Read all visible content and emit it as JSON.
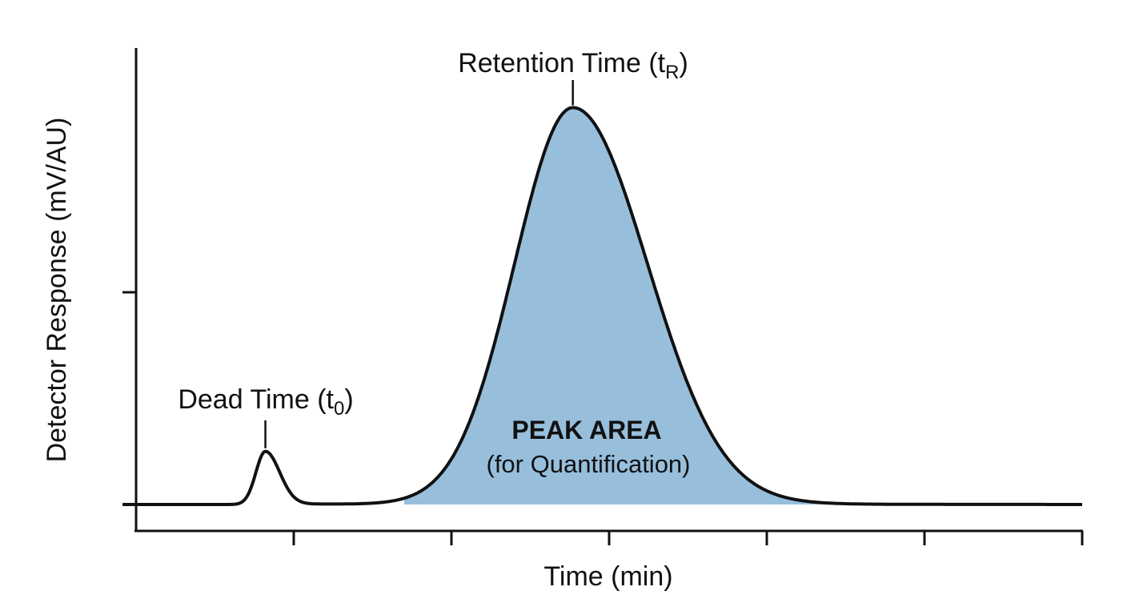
{
  "chart_data": {
    "type": "line",
    "title": "",
    "xlabel": "Time (min)",
    "ylabel": "Detector Response (mV/AU)",
    "xlim": [
      0,
      6
    ],
    "ylim": [
      -0.125,
      2.15
    ],
    "x_ticks": [
      1,
      2,
      3,
      4,
      5,
      6
    ],
    "y_ticks": [
      0,
      1
    ],
    "tick_labels_shown": false,
    "grid": false,
    "colors": {
      "line": "#111111",
      "peak_fill": "#97bfdc"
    },
    "peaks": [
      {
        "name": "dead_time",
        "x": 0.82,
        "height": 0.25,
        "sigma_left": 0.06,
        "sigma_right": 0.09
      },
      {
        "name": "analyte",
        "x": 2.77,
        "height": 1.87,
        "sigma_left": 0.37,
        "sigma_right": 0.47
      }
    ],
    "shaded_region": [
      1.7,
      4.45
    ],
    "annotations": {
      "dead_time": {
        "label": "Dead Time (t",
        "sub": "0",
        "close": ")"
      },
      "retention_time": {
        "label": "Retention Time (t",
        "sub": "R",
        "close": ")"
      },
      "peak_area": {
        "title": "PEAK AREA",
        "subtitle": "(for Quantification)"
      }
    }
  }
}
